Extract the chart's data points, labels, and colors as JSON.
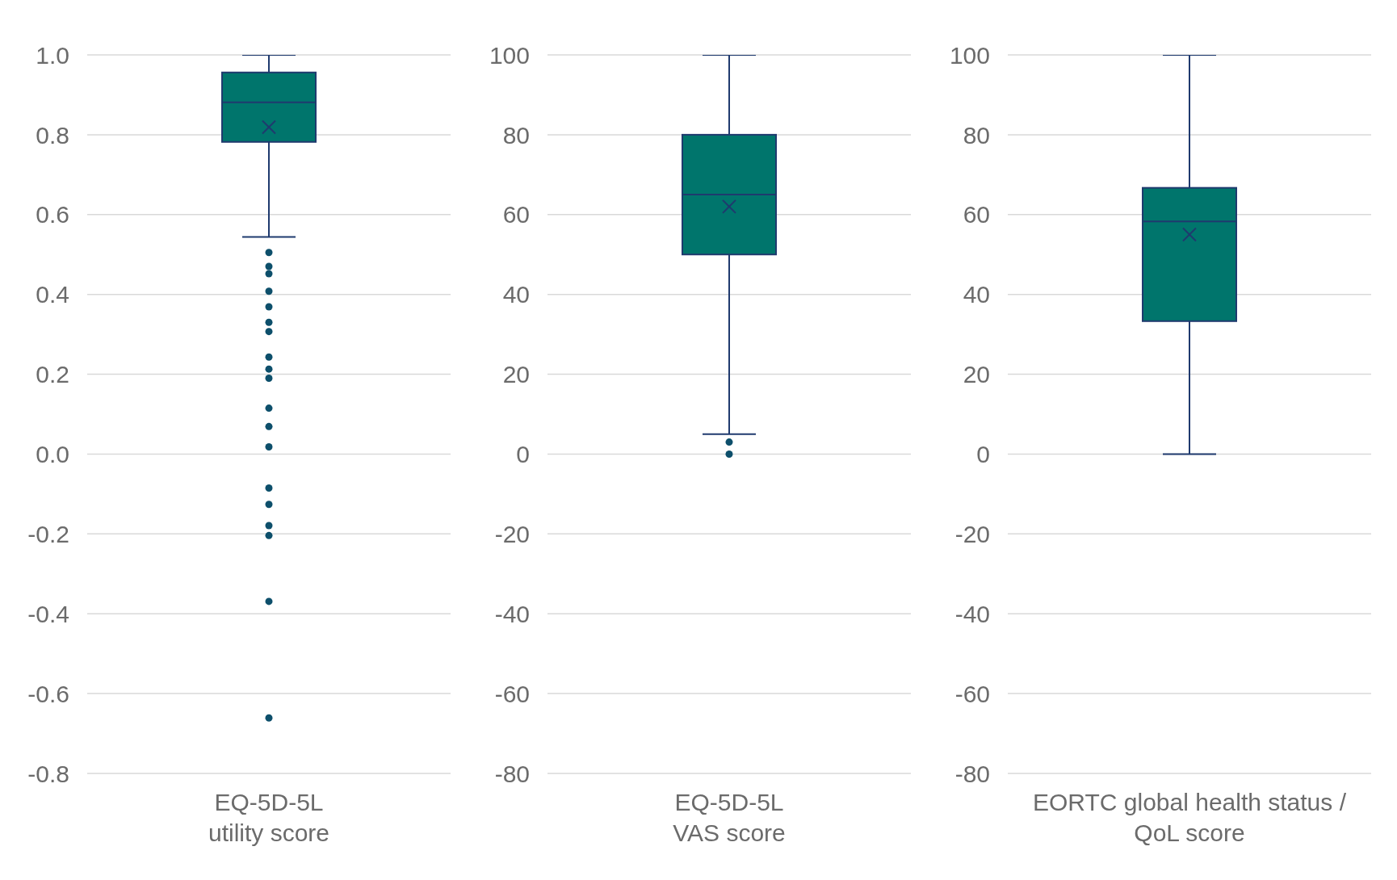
{
  "chart_data": [
    {
      "type": "box",
      "categories": [
        "EQ-5D-5L\nutility score"
      ],
      "color": "#00756c",
      "grid": "y",
      "marker": "circle",
      "ylim": [
        -0.8,
        1.0
      ],
      "yticks": [
        {
          "value": -0.8,
          "label": "-0.8"
        },
        {
          "value": -0.6,
          "label": "-0.6"
        },
        {
          "value": -0.4,
          "label": "-0.4"
        },
        {
          "value": -0.2,
          "label": "-0.2"
        },
        {
          "value": 0,
          "label": "0.0"
        },
        {
          "value": 0.2,
          "label": "0.2"
        },
        {
          "value": 0.4,
          "label": "0.4"
        },
        {
          "value": 0.6,
          "label": "0.6"
        },
        {
          "value": 0.8,
          "label": "0.8"
        },
        {
          "value": 1.0,
          "label": "1.0"
        }
      ],
      "boxes": [
        {
          "low": 0.544,
          "q1": 0.782,
          "median": 0.881,
          "q3": 0.956,
          "high": 1.0,
          "mean": 0.819,
          "outliers": [
            0.505,
            0.47,
            0.452,
            0.408,
            0.369,
            0.33,
            0.307,
            0.243,
            0.213,
            0.19,
            0.115,
            0.069,
            0.018,
            -0.085,
            -0.126,
            -0.179,
            -0.204,
            -0.369,
            -0.661
          ]
        }
      ]
    },
    {
      "type": "box",
      "categories": [
        "EQ-5D-5L\nVAS score"
      ],
      "color": "#00756c",
      "grid": "y",
      "marker": "circle",
      "ylim": [
        -80,
        100
      ],
      "yticks": [
        -80,
        -60,
        -40,
        -20,
        0,
        20,
        40,
        60,
        80,
        100
      ],
      "boxes": [
        {
          "low": 5,
          "q1": 50,
          "median": 65,
          "q3": 80,
          "high": 100,
          "mean": 62,
          "outliers": [
            3,
            0
          ]
        }
      ]
    },
    {
      "type": "box",
      "categories": [
        "EORTC global health status /\nQoL score"
      ],
      "color": "#00756c",
      "grid": "y",
      "marker": "circle",
      "ylim": [
        -80,
        100
      ],
      "yticks": [
        -80,
        -60,
        -40,
        -20,
        0,
        20,
        40,
        60,
        80,
        100
      ],
      "boxes": [
        {
          "low": 0,
          "q1": 33.3,
          "median": 58.3,
          "q3": 66.7,
          "high": 100,
          "mean": 55
        }
      ]
    }
  ]
}
